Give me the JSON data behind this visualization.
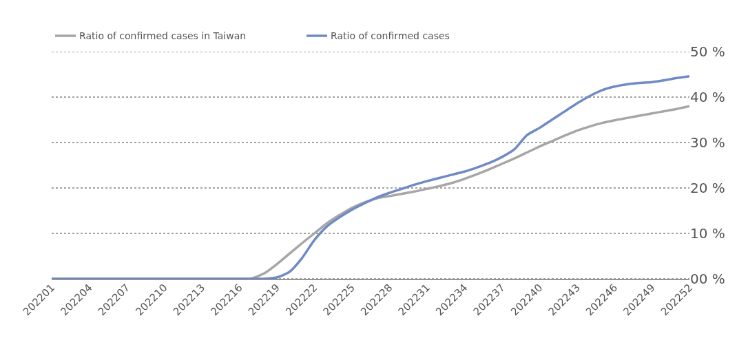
{
  "chart_data": {
    "type": "line",
    "categories": [
      "202201",
      null,
      null,
      "202204",
      null,
      null,
      "202207",
      null,
      null,
      "202210",
      null,
      null,
      "202213",
      null,
      null,
      "202216",
      null,
      null,
      "202219",
      null,
      null,
      "202222",
      null,
      null,
      "202225",
      null,
      null,
      "202228",
      null,
      null,
      "202231",
      null,
      null,
      "202234",
      null,
      null,
      "202237",
      null,
      null,
      "202240",
      null,
      null,
      "202243",
      null,
      null,
      "202246",
      null,
      null,
      "202249",
      null,
      null,
      "202252"
    ],
    "series": [
      {
        "name": "Ratio of confirmed cases in Taiwan",
        "color": "#a6a6a6",
        "values": [
          0,
          0,
          0,
          0,
          0,
          0,
          0,
          0,
          0,
          0,
          0,
          0,
          0,
          0,
          0,
          0,
          0.1,
          1.2,
          3.2,
          5.5,
          7.8,
          10.0,
          12.2,
          14.0,
          15.6,
          16.8,
          17.7,
          18.2,
          18.7,
          19.2,
          19.8,
          20.4,
          21.1,
          22.0,
          23.0,
          24.1,
          25.3,
          26.5,
          27.8,
          29.1,
          30.3,
          31.5,
          32.6,
          33.5,
          34.3,
          34.9,
          35.4,
          35.9,
          36.4,
          36.9,
          37.4,
          38.0
        ]
      },
      {
        "name": "Ratio of confirmed cases",
        "color": "#6f8ac6",
        "values": [
          0,
          0,
          0,
          0,
          0,
          0,
          0,
          0,
          0,
          0,
          0,
          0,
          0,
          0,
          0,
          0,
          0,
          0,
          0.3,
          1.5,
          4.5,
          8.5,
          11.5,
          13.5,
          15.2,
          16.6,
          17.9,
          18.9,
          19.8,
          20.7,
          21.5,
          22.2,
          22.9,
          23.6,
          24.5,
          25.5,
          26.8,
          28.5,
          31.6,
          33.2,
          35.0,
          36.8,
          38.6,
          40.2,
          41.5,
          42.3,
          42.8,
          43.1,
          43.3,
          43.7,
          44.2,
          44.6
        ]
      }
    ],
    "ylim": [
      0,
      50
    ],
    "yticks": [
      {
        "value": 0,
        "label": "00 %"
      },
      {
        "value": 10,
        "label": "10 %"
      },
      {
        "value": 20,
        "label": "20 %"
      },
      {
        "value": 30,
        "label": "30 %"
      },
      {
        "value": 40,
        "label": "40 %"
      },
      {
        "value": 50,
        "label": "50 %"
      }
    ],
    "grid": "y",
    "legend": "top left",
    "marker": "none",
    "line_style": "solid"
  }
}
